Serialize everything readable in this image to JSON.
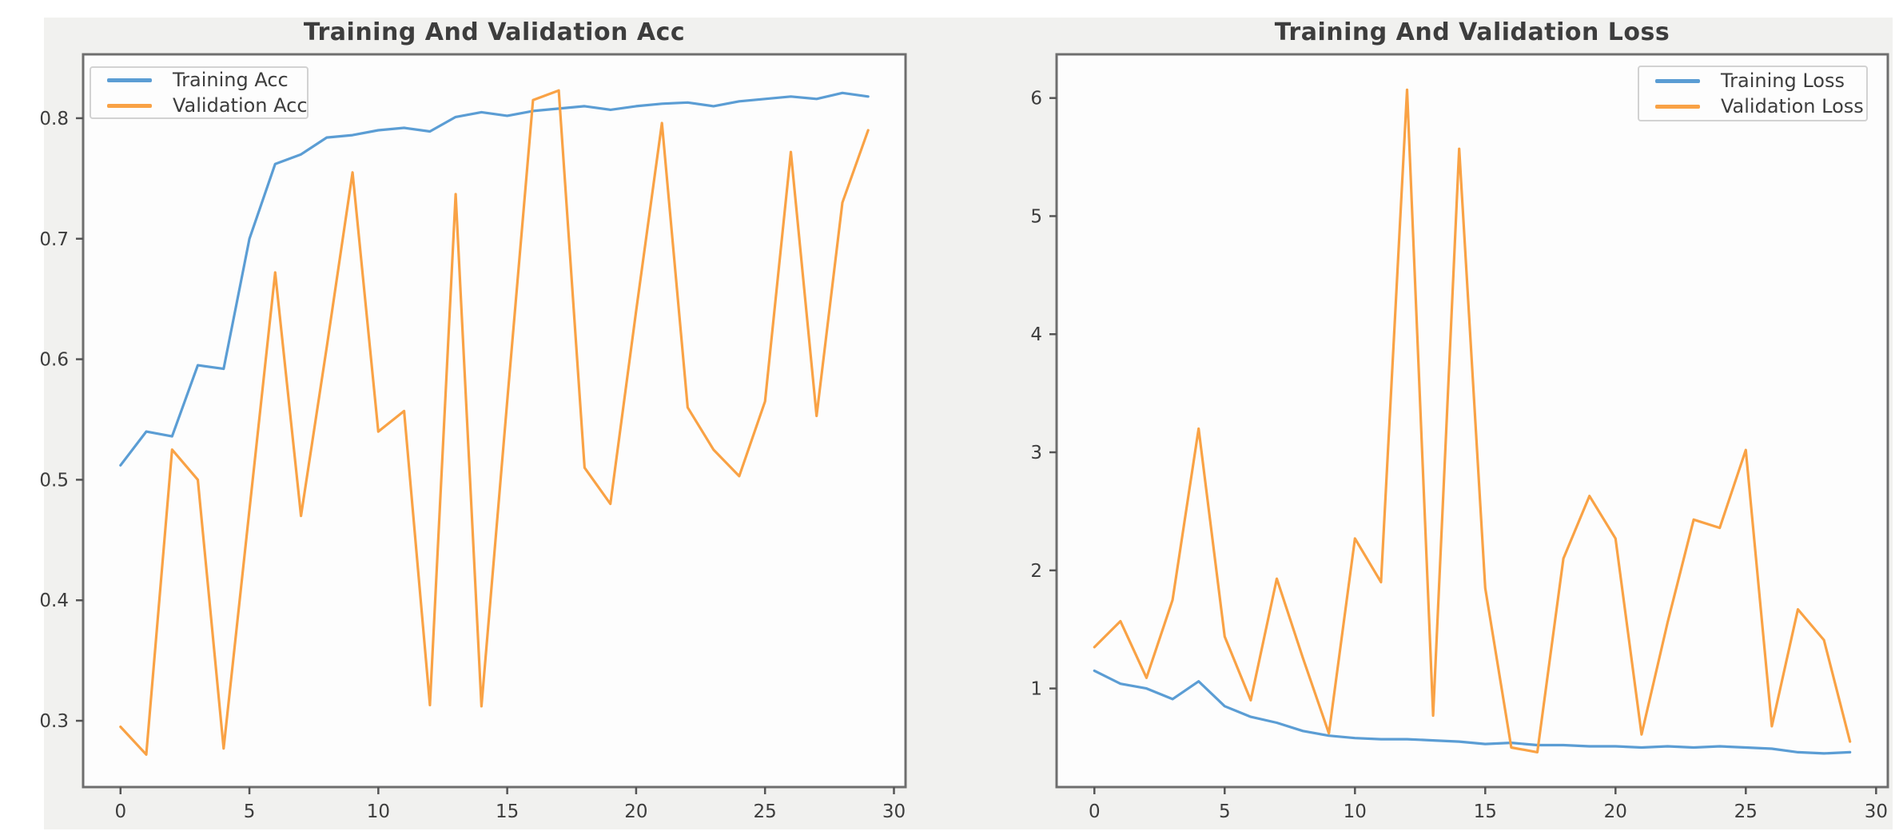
{
  "figure": {
    "page_background": "#ffffff",
    "figure_background": "#f1f1ef",
    "plot_background": "#fdfdfd",
    "spine_color": "#6e6e6e",
    "tick_color": "#555555",
    "text_color": "#3d3d3d",
    "accent_blue": "#5b9dd4",
    "accent_orange": "#f9a245"
  },
  "chart_data": [
    {
      "type": "line",
      "title": "Training And Validation Acc",
      "xlabel": "",
      "ylabel": "",
      "grid": false,
      "legend_position": "upper left",
      "x": [
        0,
        1,
        2,
        3,
        4,
        5,
        6,
        7,
        8,
        9,
        10,
        11,
        12,
        13,
        14,
        15,
        16,
        17,
        18,
        19,
        20,
        21,
        22,
        23,
        24,
        25,
        26,
        27,
        28,
        29
      ],
      "series": [
        {
          "name": "Training Acc",
          "color": "#5b9dd4",
          "values": [
            0.512,
            0.54,
            0.536,
            0.595,
            0.592,
            0.7,
            0.762,
            0.77,
            0.784,
            0.786,
            0.79,
            0.792,
            0.789,
            0.801,
            0.805,
            0.802,
            0.806,
            0.808,
            0.81,
            0.807,
            0.81,
            0.812,
            0.813,
            0.81,
            0.814,
            0.816,
            0.818,
            0.816,
            0.821,
            0.818
          ]
        },
        {
          "name": "Validation Acc",
          "color": "#f9a245",
          "values": [
            0.295,
            0.272,
            0.525,
            0.5,
            0.277,
            0.475,
            0.672,
            0.47,
            0.61,
            0.755,
            0.54,
            0.557,
            0.313,
            0.737,
            0.312,
            0.565,
            0.815,
            0.823,
            0.51,
            0.48,
            0.64,
            0.796,
            0.56,
            0.525,
            0.503,
            0.565,
            0.772,
            0.553,
            0.73,
            0.79
          ]
        }
      ],
      "xlim": [
        -1.45,
        30.45
      ],
      "ylim": [
        0.245,
        0.853
      ],
      "xtick_values": [
        0,
        5,
        10,
        15,
        20,
        25,
        30
      ],
      "xtick_labels": [
        "0",
        "5",
        "10",
        "15",
        "20",
        "25",
        "30"
      ],
      "ytick_values": [
        0.3,
        0.4,
        0.5,
        0.6,
        0.7,
        0.8
      ],
      "ytick_labels": [
        "0.3",
        "0.4",
        "0.5",
        "0.6",
        "0.7",
        "0.8"
      ]
    },
    {
      "type": "line",
      "title": "Training And Validation Loss",
      "xlabel": "",
      "ylabel": "",
      "grid": false,
      "legend_position": "upper right",
      "x": [
        0,
        1,
        2,
        3,
        4,
        5,
        6,
        7,
        8,
        9,
        10,
        11,
        12,
        13,
        14,
        15,
        16,
        17,
        18,
        19,
        20,
        21,
        22,
        23,
        24,
        25,
        26,
        27,
        28,
        29
      ],
      "series": [
        {
          "name": "Training Loss",
          "color": "#5b9dd4",
          "values": [
            1.15,
            1.04,
            1.0,
            0.91,
            1.06,
            0.85,
            0.76,
            0.71,
            0.64,
            0.6,
            0.58,
            0.57,
            0.57,
            0.56,
            0.55,
            0.53,
            0.54,
            0.52,
            0.52,
            0.51,
            0.51,
            0.5,
            0.51,
            0.5,
            0.51,
            0.5,
            0.49,
            0.46,
            0.45,
            0.46
          ]
        },
        {
          "name": "Validation Loss",
          "color": "#f9a245",
          "values": [
            1.35,
            1.57,
            1.09,
            1.75,
            3.2,
            1.44,
            0.9,
            1.93,
            1.26,
            0.62,
            2.27,
            1.9,
            6.07,
            0.77,
            5.57,
            1.85,
            0.5,
            0.46,
            2.1,
            2.63,
            2.27,
            0.61,
            1.56,
            2.43,
            2.36,
            3.02,
            0.68,
            1.67,
            1.41,
            0.55
          ]
        }
      ],
      "xlim": [
        -1.45,
        30.45
      ],
      "ylim": [
        0.165,
        6.37
      ],
      "xtick_values": [
        0,
        5,
        10,
        15,
        20,
        25,
        30
      ],
      "xtick_labels": [
        "0",
        "5",
        "10",
        "15",
        "20",
        "25",
        "30"
      ],
      "ytick_values": [
        1,
        2,
        3,
        4,
        5,
        6
      ],
      "ytick_labels": [
        "1",
        "2",
        "3",
        "4",
        "5",
        "6"
      ]
    }
  ]
}
